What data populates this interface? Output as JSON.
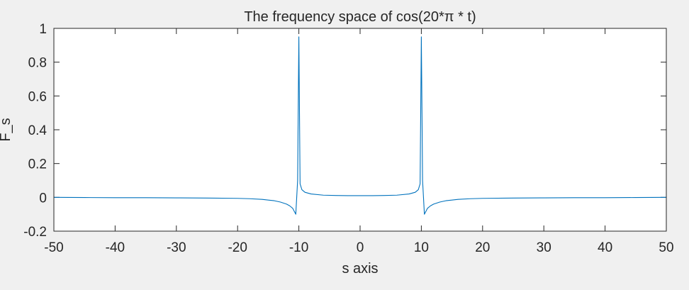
{
  "chart_data": {
    "type": "line",
    "title": "The frequency space of cos(20*π * t)",
    "xlabel": "s axis",
    "ylabel": "F_s",
    "xlim": [
      -50,
      50
    ],
    "ylim": [
      -0.2,
      1
    ],
    "xticks": [
      -50,
      -40,
      -30,
      -20,
      -10,
      0,
      10,
      20,
      30,
      40,
      50
    ],
    "yticks": [
      -0.2,
      0,
      0.2,
      0.4,
      0.6,
      0.8,
      1
    ],
    "ytick_labels": [
      "-0.2",
      "0",
      "0.2",
      "0.4",
      "0.6",
      "0.8",
      "1"
    ],
    "grid": false,
    "series": [
      {
        "color": "#0072bd",
        "x": [
          -50,
          -45,
          -40,
          -35,
          -30,
          -25,
          -20,
          -18,
          -16,
          -14,
          -13,
          -12,
          -11.5,
          -11,
          -10.5,
          -10.2,
          -10,
          -9.8,
          -9.5,
          -9,
          -8,
          -6,
          -4,
          -2,
          0,
          2,
          4,
          6,
          8,
          9,
          9.5,
          9.8,
          10,
          10.2,
          10.5,
          11,
          11.5,
          12,
          13,
          14,
          16,
          18,
          20,
          25,
          30,
          35,
          40,
          45,
          50
        ],
        "y": [
          0,
          -0.001,
          -0.002,
          -0.002,
          -0.003,
          -0.004,
          -0.006,
          -0.008,
          -0.012,
          -0.02,
          -0.028,
          -0.04,
          -0.05,
          -0.065,
          -0.1,
          0.1,
          0.95,
          0.08,
          0.045,
          0.03,
          0.02,
          0.013,
          0.011,
          0.01,
          0.01,
          0.01,
          0.011,
          0.013,
          0.02,
          0.03,
          0.045,
          0.08,
          0.95,
          0.1,
          -0.1,
          -0.065,
          -0.05,
          -0.04,
          -0.028,
          -0.02,
          -0.012,
          -0.008,
          -0.006,
          -0.004,
          -0.003,
          -0.002,
          -0.002,
          -0.001,
          0
        ]
      }
    ]
  }
}
